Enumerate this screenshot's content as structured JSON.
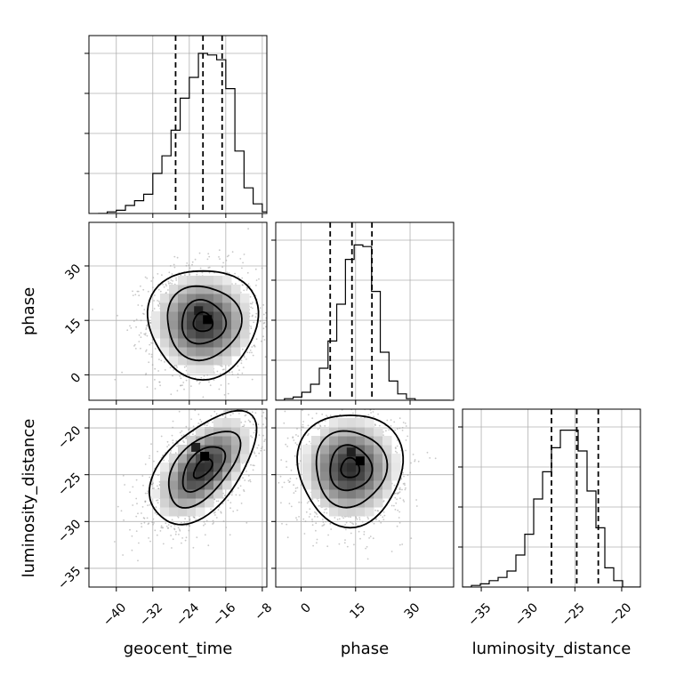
{
  "chart_data": {
    "type": "corner",
    "parameters": [
      {
        "key": "geocent_time",
        "label": "geocent_time",
        "range": [
          -46,
          -7
        ],
        "ticks": [
          -40,
          -32,
          -24,
          -16,
          -8
        ],
        "tick_labels": [
          "−40",
          "−32",
          "−24",
          "−16",
          "−8"
        ],
        "quantiles": [
          -27,
          -21,
          -16.8
        ]
      },
      {
        "key": "phase",
        "label": "phase",
        "range": [
          -7,
          42
        ],
        "ticks": [
          0,
          15,
          30
        ],
        "tick_labels": [
          "0",
          "15",
          "30"
        ],
        "quantiles": [
          8,
          14,
          19.5
        ]
      },
      {
        "key": "luminosity_distance",
        "label": "luminosity_distance",
        "range": [
          -37,
          -18
        ],
        "ticks": [
          -35,
          -30,
          -25,
          -20
        ],
        "tick_labels": [
          "−35",
          "−30",
          "−25",
          "−20"
        ],
        "quantiles": [
          -27.5,
          -24.8,
          -22.5
        ]
      }
    ],
    "histograms": [
      {
        "param": "geocent_time",
        "edges_start": -44,
        "bin_width": 2,
        "counts": [
          0.0,
          0.01,
          0.02,
          0.05,
          0.08,
          0.12,
          0.25,
          0.36,
          0.52,
          0.72,
          0.85,
          1.0,
          0.99,
          0.96,
          0.78,
          0.39,
          0.16,
          0.06,
          0.01,
          0.0
        ]
      },
      {
        "param": "phase",
        "edges_start": -7,
        "bin_width": 2.4,
        "counts": [
          0.0,
          0.01,
          0.02,
          0.05,
          0.1,
          0.2,
          0.37,
          0.6,
          0.88,
          0.97,
          0.96,
          0.68,
          0.3,
          0.12,
          0.04,
          0.01,
          0.0,
          0.0,
          0.0,
          0.0
        ]
      },
      {
        "param": "luminosity_distance",
        "edges_start": -37,
        "bin_width": 0.95,
        "counts": [
          0.0,
          0.01,
          0.02,
          0.04,
          0.06,
          0.1,
          0.2,
          0.33,
          0.55,
          0.72,
          0.87,
          0.98,
          0.98,
          0.85,
          0.6,
          0.37,
          0.12,
          0.04,
          0.0,
          0.0
        ]
      }
    ],
    "joints": [
      {
        "x": "geocent_time",
        "y": "phase",
        "mean": [
          -21,
          14.5
        ],
        "sigma": [
          6,
          7.5
        ],
        "rho": 0.0,
        "peak": [
          -21,
          14
        ]
      },
      {
        "x": "geocent_time",
        "y": "luminosity_distance",
        "mean": [
          -21,
          -24.3
        ],
        "sigma": [
          5.8,
          3.0
        ],
        "rho": 0.55,
        "peak": [
          -21.6,
          -23.5
        ]
      },
      {
        "x": "phase",
        "y": "luminosity_distance",
        "mean": [
          13.5,
          -24.3
        ],
        "sigma": [
          7.2,
          3.0
        ],
        "rho": 0.0,
        "peak": [
          15,
          -24
        ]
      }
    ],
    "grid": true
  }
}
